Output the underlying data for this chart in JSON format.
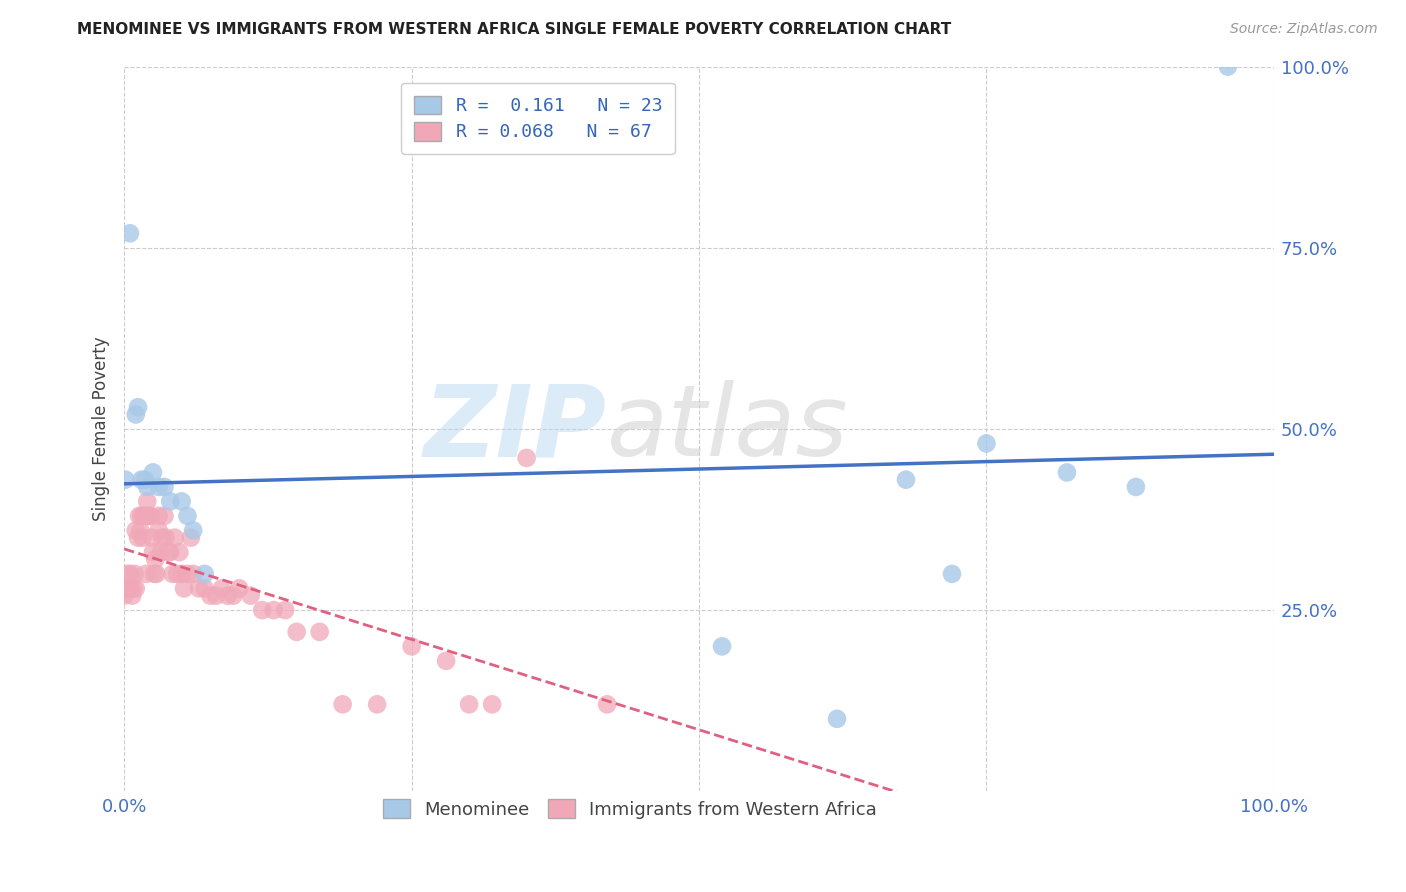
{
  "title": "MENOMINEE VS IMMIGRANTS FROM WESTERN AFRICA SINGLE FEMALE POVERTY CORRELATION CHART",
  "source": "Source: ZipAtlas.com",
  "ylabel": "Single Female Poverty",
  "xlim": [
    0.0,
    1.0
  ],
  "ylim": [
    0.0,
    1.0
  ],
  "xticks": [
    0.0,
    0.25,
    0.5,
    0.75,
    1.0
  ],
  "xticklabels": [
    "0.0%",
    "",
    "",
    "",
    "100.0%"
  ],
  "yticks": [
    0.25,
    0.5,
    0.75,
    1.0
  ],
  "yticklabels": [
    "25.0%",
    "50.0%",
    "75.0%",
    "100.0%"
  ],
  "menominee_R": 0.161,
  "menominee_N": 23,
  "western_africa_R": 0.068,
  "western_africa_N": 67,
  "menominee_color": "#a8c8e8",
  "western_africa_color": "#f0a8b8",
  "menominee_line_color": "#4472c4",
  "western_africa_line_color": "#e06080",
  "menominee_x": [
    0.001,
    0.005,
    0.01,
    0.012,
    0.015,
    0.018,
    0.02,
    0.025,
    0.03,
    0.035,
    0.04,
    0.05,
    0.055,
    0.06,
    0.07,
    0.52,
    0.62,
    0.68,
    0.72,
    0.75,
    0.82,
    0.88,
    0.96
  ],
  "menominee_y": [
    0.43,
    0.77,
    0.52,
    0.53,
    0.43,
    0.43,
    0.42,
    0.44,
    0.42,
    0.42,
    0.4,
    0.4,
    0.38,
    0.36,
    0.3,
    0.2,
    0.1,
    0.43,
    0.3,
    0.48,
    0.44,
    0.42,
    1.0
  ],
  "western_africa_x": [
    0.0,
    0.002,
    0.003,
    0.004,
    0.005,
    0.005,
    0.007,
    0.008,
    0.009,
    0.01,
    0.01,
    0.012,
    0.013,
    0.014,
    0.015,
    0.016,
    0.017,
    0.018,
    0.019,
    0.02,
    0.02,
    0.022,
    0.023,
    0.024,
    0.025,
    0.026,
    0.027,
    0.028,
    0.03,
    0.03,
    0.032,
    0.033,
    0.035,
    0.036,
    0.038,
    0.04,
    0.042,
    0.044,
    0.046,
    0.048,
    0.05,
    0.052,
    0.055,
    0.058,
    0.06,
    0.065,
    0.07,
    0.075,
    0.08,
    0.085,
    0.09,
    0.095,
    0.1,
    0.11,
    0.12,
    0.13,
    0.14,
    0.15,
    0.17,
    0.19,
    0.22,
    0.25,
    0.28,
    0.3,
    0.32,
    0.35,
    0.42
  ],
  "western_africa_y": [
    0.27,
    0.28,
    0.3,
    0.28,
    0.3,
    0.28,
    0.27,
    0.28,
    0.3,
    0.36,
    0.28,
    0.35,
    0.38,
    0.36,
    0.38,
    0.35,
    0.38,
    0.38,
    0.3,
    0.4,
    0.38,
    0.38,
    0.38,
    0.35,
    0.33,
    0.3,
    0.32,
    0.3,
    0.38,
    0.36,
    0.33,
    0.35,
    0.38,
    0.35,
    0.33,
    0.33,
    0.3,
    0.35,
    0.3,
    0.33,
    0.3,
    0.28,
    0.3,
    0.35,
    0.3,
    0.28,
    0.28,
    0.27,
    0.27,
    0.28,
    0.27,
    0.27,
    0.28,
    0.27,
    0.25,
    0.25,
    0.25,
    0.22,
    0.22,
    0.12,
    0.12,
    0.2,
    0.18,
    0.12,
    0.12,
    0.46,
    0.12
  ],
  "bg_color": "#ffffff",
  "grid_color": "#cccccc",
  "legend1_text1": "R =  0.161   N = 23",
  "legend1_text2": "R = 0.068   N = 67"
}
